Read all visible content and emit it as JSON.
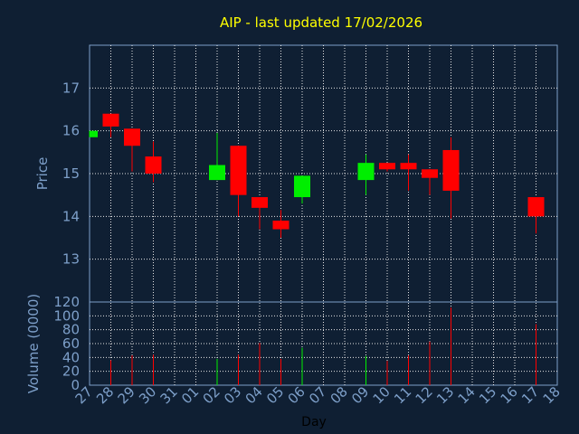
{
  "chart_data": {
    "type": "candlestick",
    "title": "AIP - last updated 17/02/2026",
    "xlabel": "Day",
    "x_ticks": [
      "27",
      "28",
      "29",
      "30",
      "31",
      "01",
      "02",
      "03",
      "04",
      "05",
      "06",
      "07",
      "08",
      "09",
      "10",
      "11",
      "12",
      "13",
      "14",
      "15",
      "16",
      "17",
      "18"
    ],
    "price_panel": {
      "ylabel": "Price",
      "ylim": [
        12.0,
        18.0
      ],
      "y_ticks": [
        13,
        14,
        15,
        16,
        17
      ],
      "grid": true
    },
    "volume_panel": {
      "ylabel": "Volume (0000)",
      "ylim": [
        0,
        120
      ],
      "y_ticks": [
        0,
        20,
        40,
        60,
        80,
        100,
        120
      ],
      "grid": true
    },
    "colors": {
      "up": "#00ee00",
      "down": "#ff0000",
      "background": "#0f1f33",
      "plot_border": "#7d9fc9",
      "grid": "#e6e6e6"
    },
    "candles": [
      {
        "day": "27",
        "open": 15.85,
        "high": 16.0,
        "low": 15.85,
        "close": 16.0,
        "volume": 0
      },
      {
        "day": "28",
        "open": 16.4,
        "high": 16.4,
        "low": 15.85,
        "close": 16.1,
        "volume": 36
      },
      {
        "day": "29",
        "open": 16.05,
        "high": 16.05,
        "low": 15.05,
        "close": 15.65,
        "volume": 43
      },
      {
        "day": "30",
        "open": 15.4,
        "high": 15.75,
        "low": 14.8,
        "close": 15.0,
        "volume": 44
      },
      {
        "day": "02",
        "open": 14.85,
        "high": 15.95,
        "low": 14.85,
        "close": 15.2,
        "volume": 38
      },
      {
        "day": "03",
        "open": 15.65,
        "high": 15.65,
        "low": 14.0,
        "close": 14.5,
        "volume": 44
      },
      {
        "day": "04",
        "open": 14.45,
        "high": 14.45,
        "low": 13.7,
        "close": 14.2,
        "volume": 61
      },
      {
        "day": "05",
        "open": 13.9,
        "high": 14.15,
        "low": 13.5,
        "close": 13.7,
        "volume": 38
      },
      {
        "day": "06",
        "open": 14.45,
        "high": 14.95,
        "low": 14.3,
        "close": 14.95,
        "volume": 54
      },
      {
        "day": "09",
        "open": 14.85,
        "high": 15.45,
        "low": 14.5,
        "close": 15.25,
        "volume": 42
      },
      {
        "day": "10",
        "open": 15.25,
        "high": 15.25,
        "low": 15.05,
        "close": 15.1,
        "volume": 35
      },
      {
        "day": "11",
        "open": 15.25,
        "high": 15.45,
        "low": 14.6,
        "close": 15.1,
        "volume": 43
      },
      {
        "day": "12",
        "open": 15.1,
        "high": 15.1,
        "low": 14.5,
        "close": 14.9,
        "volume": 63
      },
      {
        "day": "13",
        "open": 15.55,
        "high": 15.85,
        "low": 13.95,
        "close": 14.6,
        "volume": 112
      },
      {
        "day": "17",
        "open": 14.45,
        "high": 14.45,
        "low": 13.6,
        "close": 14.0,
        "volume": 88
      }
    ]
  }
}
